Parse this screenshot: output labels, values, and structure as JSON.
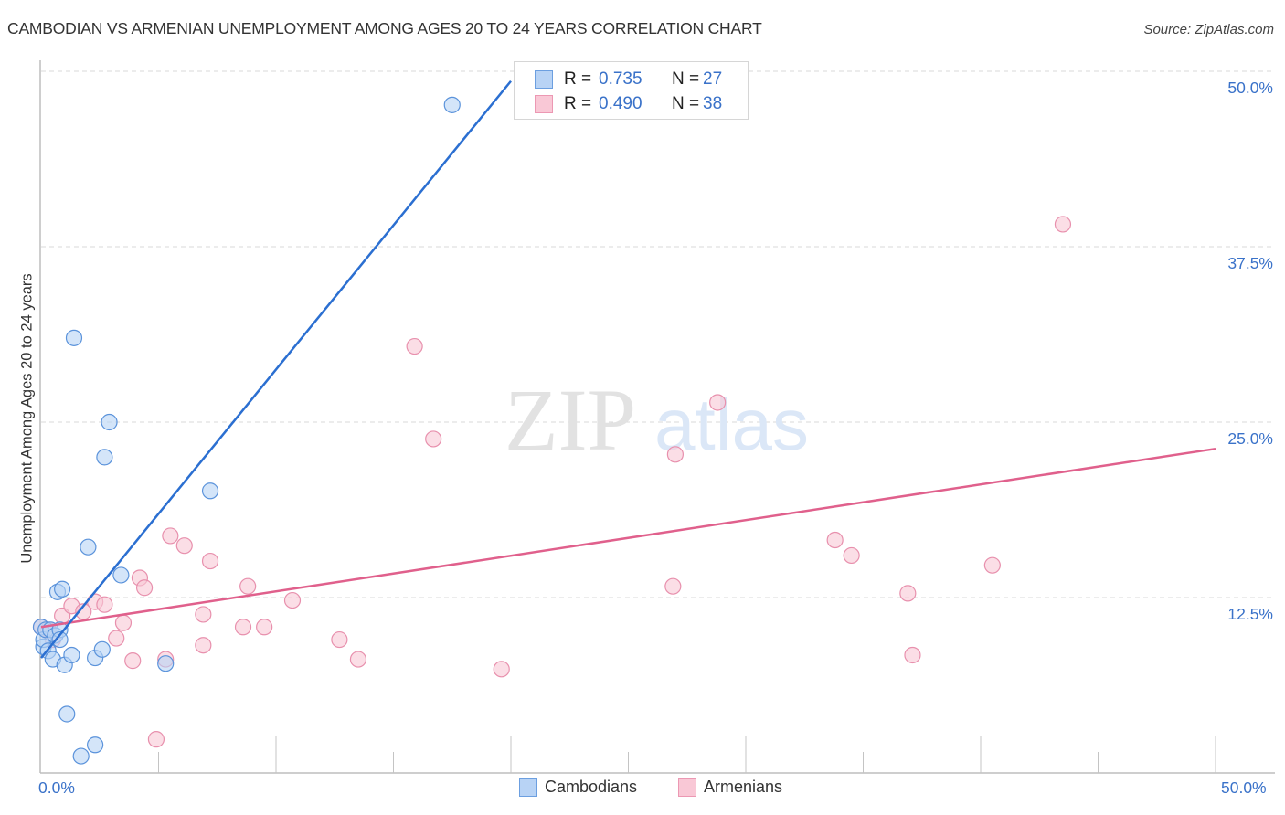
{
  "title": "CAMBODIAN VS ARMENIAN UNEMPLOYMENT AMONG AGES 20 TO 24 YEARS CORRELATION CHART",
  "source": "Source: ZipAtlas.com",
  "watermark": {
    "zip": "ZIP",
    "atlas": "atlas"
  },
  "colors": {
    "cambodians_fill": "#b8d3f5",
    "cambodians_stroke": "#5b93db",
    "cambodians_line": "#2b6fd1",
    "armenians_fill": "#f9c8d6",
    "armenians_stroke": "#e890ad",
    "armenians_line": "#e0608c",
    "axis_text": "#3a72c9"
  },
  "legend": {
    "rows": [
      {
        "r_label": "R =",
        "r_value": "0.735",
        "n_label": "N =",
        "n_value": "27"
      },
      {
        "r_label": "R =",
        "r_value": "0.490",
        "n_label": "N =",
        "n_value": "38"
      }
    ],
    "series": [
      "Cambodians",
      "Armenians"
    ]
  },
  "axes": {
    "y_label": "Unemployment Among Ages 20 to 24 years",
    "y_ticks": [
      "50.0%",
      "37.5%",
      "25.0%",
      "12.5%"
    ],
    "x_ticks": [
      "0.0%",
      "50.0%"
    ]
  },
  "chart_data": {
    "type": "scatter",
    "title": "CAMBODIAN VS ARMENIAN UNEMPLOYMENT AMONG AGES 20 TO 24 YEARS CORRELATION CHART",
    "xlabel": "",
    "ylabel": "Unemployment Among Ages 20 to 24 years",
    "xlim": [
      0,
      50
    ],
    "ylim": [
      0,
      50
    ],
    "x_ticks": [
      0,
      50
    ],
    "y_ticks": [
      12.5,
      25.0,
      37.5,
      50.0
    ],
    "grid": "horizontal dashed",
    "legend_position": "top-center (stats) and bottom-center (series)",
    "series": [
      {
        "name": "Cambodians",
        "R": 0.735,
        "N": 27,
        "trendline": {
          "x": [
            0,
            20.0
          ],
          "y": [
            8.2,
            49.3
          ]
        },
        "points": [
          [
            0.0,
            10.4
          ],
          [
            0.1,
            9.0
          ],
          [
            0.1,
            9.5
          ],
          [
            0.2,
            10.2
          ],
          [
            0.3,
            8.7
          ],
          [
            0.4,
            10.2
          ],
          [
            0.5,
            8.1
          ],
          [
            0.6,
            9.8
          ],
          [
            0.7,
            12.9
          ],
          [
            0.8,
            10.2
          ],
          [
            0.8,
            9.5
          ],
          [
            0.9,
            13.1
          ],
          [
            1.0,
            7.7
          ],
          [
            1.1,
            4.2
          ],
          [
            1.3,
            8.4
          ],
          [
            1.4,
            31.0
          ],
          [
            1.7,
            1.2
          ],
          [
            2.0,
            16.1
          ],
          [
            2.3,
            8.2
          ],
          [
            2.3,
            2.0
          ],
          [
            2.6,
            8.8
          ],
          [
            2.7,
            22.5
          ],
          [
            2.9,
            25.0
          ],
          [
            3.4,
            14.1
          ],
          [
            5.3,
            7.8
          ],
          [
            7.2,
            20.1
          ],
          [
            17.5,
            47.6
          ]
        ]
      },
      {
        "name": "Armenians",
        "R": 0.49,
        "N": 38,
        "trendline": {
          "x": [
            0,
            50
          ],
          "y": [
            10.4,
            23.1
          ]
        },
        "points": [
          [
            0.0,
            10.4
          ],
          [
            0.3,
            10.2
          ],
          [
            0.5,
            9.5
          ],
          [
            0.9,
            11.2
          ],
          [
            1.3,
            11.9
          ],
          [
            1.8,
            11.5
          ],
          [
            2.3,
            12.2
          ],
          [
            2.7,
            12.0
          ],
          [
            3.2,
            9.6
          ],
          [
            3.5,
            10.7
          ],
          [
            3.9,
            8.0
          ],
          [
            4.2,
            13.9
          ],
          [
            4.4,
            13.2
          ],
          [
            4.9,
            2.4
          ],
          [
            5.3,
            8.1
          ],
          [
            5.5,
            16.9
          ],
          [
            6.1,
            16.2
          ],
          [
            6.9,
            11.3
          ],
          [
            6.9,
            9.1
          ],
          [
            7.2,
            15.1
          ],
          [
            8.6,
            10.4
          ],
          [
            8.8,
            13.3
          ],
          [
            9.5,
            10.4
          ],
          [
            10.7,
            12.3
          ],
          [
            12.7,
            9.5
          ],
          [
            13.5,
            8.1
          ],
          [
            15.9,
            30.4
          ],
          [
            16.7,
            23.8
          ],
          [
            19.6,
            7.4
          ],
          [
            26.9,
            13.3
          ],
          [
            27.0,
            22.7
          ],
          [
            28.8,
            26.4
          ],
          [
            33.8,
            16.6
          ],
          [
            34.5,
            15.5
          ],
          [
            36.9,
            12.8
          ],
          [
            37.1,
            8.4
          ],
          [
            40.5,
            14.8
          ],
          [
            43.5,
            39.1
          ]
        ]
      }
    ]
  }
}
